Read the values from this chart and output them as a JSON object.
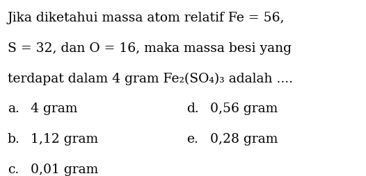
{
  "bg_color": "#ffffff",
  "text_color": "#000000",
  "font_size": 13.5,
  "line1": "Jika diketahui massa atom relatif Fe = 56,",
  "line2": "S = 32, dan O = 16, maka massa besi yang",
  "line3_before": "terdapat dalam 4 gram Fe",
  "line3_sub2": "2",
  "line3_mid": "(SO",
  "line3_sub4": "4",
  "line3_close": ")",
  "line3_sub3": "3",
  "line3_after": " adalah ....",
  "opt_a_label": "a.",
  "opt_a_val": "4 gram",
  "opt_b_label": "b.",
  "opt_b_val": "1,12 gram",
  "opt_c_label": "c.",
  "opt_c_val": "0,01 gram",
  "opt_d_label": "d.",
  "opt_d_val": "0,56 gram",
  "opt_e_label": "e.",
  "opt_e_val": "0,28 gram"
}
